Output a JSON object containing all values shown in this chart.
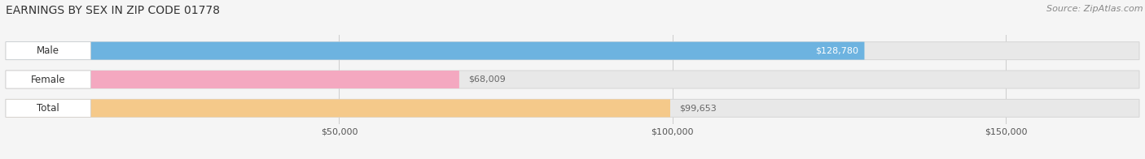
{
  "title": "EARNINGS BY SEX IN ZIP CODE 01778",
  "source": "Source: ZipAtlas.com",
  "categories": [
    "Male",
    "Female",
    "Total"
  ],
  "values": [
    128780,
    68009,
    99653
  ],
  "bar_colors": [
    "#6db3e0",
    "#f4a8c0",
    "#f5c98a"
  ],
  "label_value_colors": [
    "#ffffff",
    "#666666",
    "#666666"
  ],
  "label_value_inside": [
    true,
    false,
    false
  ],
  "bg_color": "#f5f5f5",
  "bar_bg_color": "#e8e8e8",
  "xlim_min": 0,
  "xlim_max": 170000,
  "xticks": [
    50000,
    100000,
    150000
  ],
  "xtick_labels": [
    "$50,000",
    "$100,000",
    "$150,000"
  ],
  "bar_height": 0.62,
  "figsize": [
    14.06,
    1.96
  ],
  "dpi": 100,
  "title_fontsize": 10,
  "source_fontsize": 8,
  "bar_label_fontsize": 8,
  "category_fontsize": 8.5,
  "xtick_fontsize": 8
}
